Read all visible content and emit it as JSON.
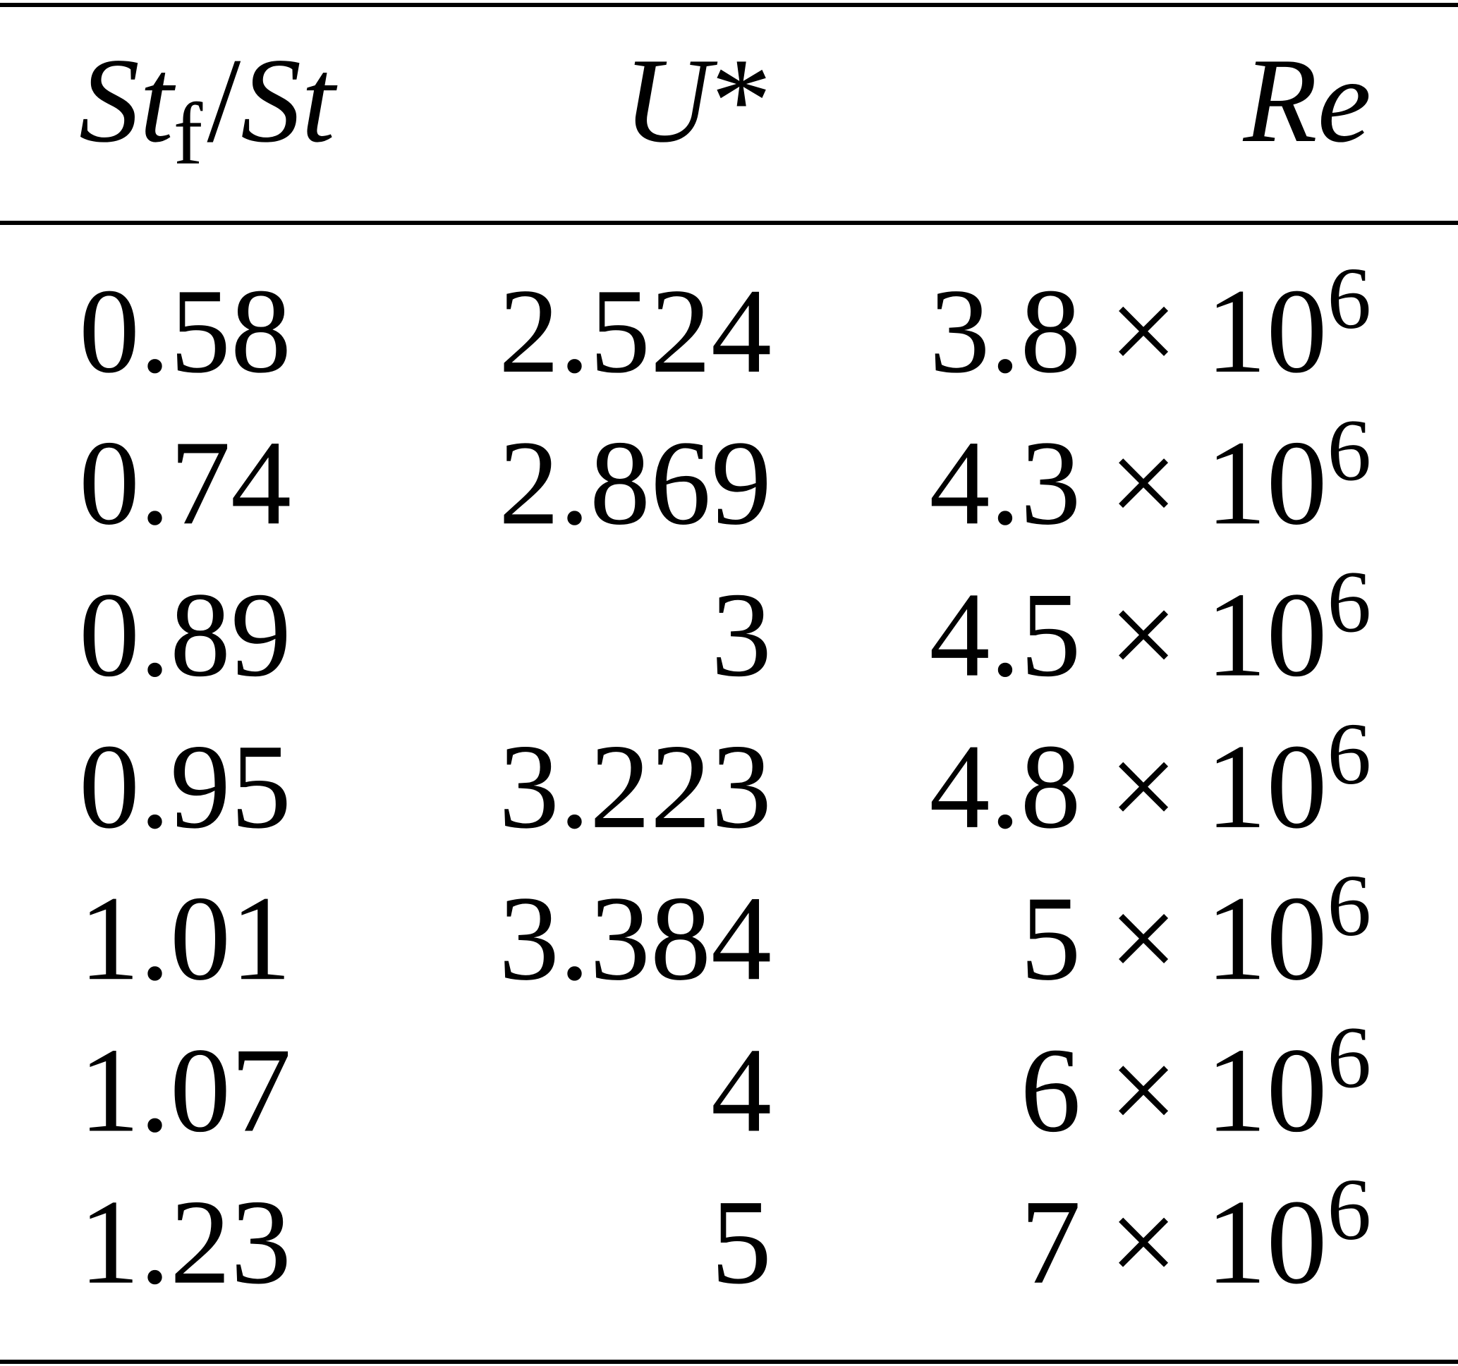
{
  "table": {
    "header": {
      "col1": {
        "symbol": "St",
        "subscript": "f",
        "slash": "/",
        "symbol2": "St"
      },
      "col2": {
        "symbol": "U",
        "star": "*"
      },
      "col3": {
        "symbol": "Re"
      }
    },
    "rows": [
      [
        0.58,
        2.524,
        {
          "mantissa": 3.8,
          "times": "×",
          "base": 10,
          "exponent": 6
        }
      ],
      [
        0.74,
        2.869,
        {
          "mantissa": 4.3,
          "times": "×",
          "base": 10,
          "exponent": 6
        }
      ],
      [
        0.89,
        3,
        {
          "mantissa": 4.5,
          "times": "×",
          "base": 10,
          "exponent": 6
        }
      ],
      [
        0.95,
        3.223,
        {
          "mantissa": 4.8,
          "times": "×",
          "base": 10,
          "exponent": 6
        }
      ],
      [
        1.01,
        3.384,
        {
          "mantissa": 5,
          "times": "×",
          "base": 10,
          "exponent": 6
        }
      ],
      [
        1.07,
        4,
        {
          "mantissa": 6,
          "times": "×",
          "base": 10,
          "exponent": 6
        }
      ],
      [
        1.23,
        5,
        {
          "mantissa": 7,
          "times": "×",
          "base": 10,
          "exponent": 6
        }
      ]
    ]
  }
}
